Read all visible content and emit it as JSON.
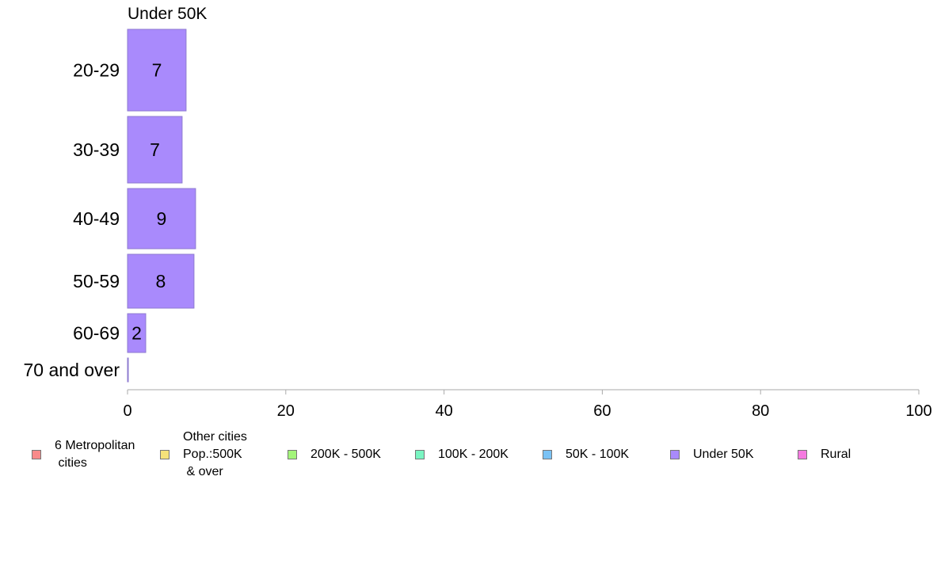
{
  "chart_data": {
    "type": "bar",
    "orientation": "horizontal",
    "title": "Under 50K",
    "categories": [
      "20-29",
      "30-39",
      "40-49",
      "50-59",
      "60-69",
      "70 and over"
    ],
    "series": [
      {
        "name": "Under 50K",
        "values": [
          7.4,
          6.9,
          8.6,
          8.4,
          2.3,
          0.1
        ],
        "labels": [
          "7",
          "7",
          "9",
          "8",
          "2",
          ""
        ]
      }
    ],
    "xlim": [
      0,
      100
    ],
    "xticks": [
      "0",
      "20",
      "40",
      "60",
      "80",
      "100"
    ],
    "grid": false,
    "legend_position": "bottom",
    "legend": [
      {
        "label": "6 Metropolitan\n cities",
        "color": "#f88a8a"
      },
      {
        "label": "Other cities\nPop.:500K\n & over",
        "color": "#f5e27a"
      },
      {
        "label": "200K - 500K",
        "color": "#a3f57a"
      },
      {
        "label": "100K - 200K",
        "color": "#7af5c2"
      },
      {
        "label": "50K - 100K",
        "color": "#7ac2f5"
      },
      {
        "label": "Under 50K",
        "color": "#a98afc"
      },
      {
        "label": "Rural",
        "color": "#f57ae0"
      }
    ],
    "bar_color": "#a98afc"
  }
}
